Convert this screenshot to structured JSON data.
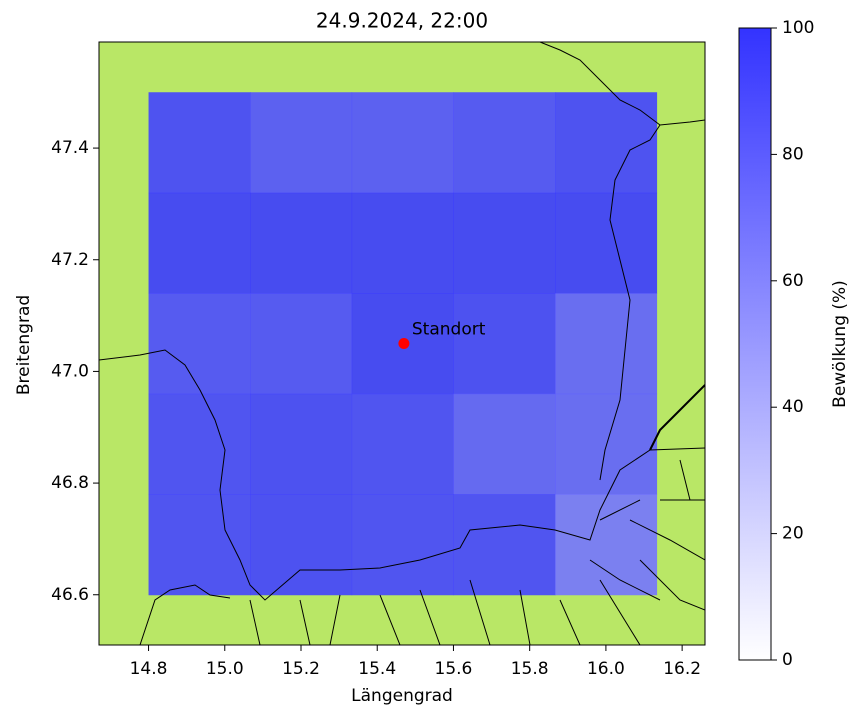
{
  "chart_data": {
    "type": "heatmap",
    "title": "24.9.2024, 22:00",
    "x_label": "Längengrad",
    "y_label": "Breitengrad",
    "x_edges": [
      14.8,
      15.067,
      15.333,
      15.6,
      15.867,
      16.133
    ],
    "y_edges": [
      47.5,
      47.32,
      47.14,
      46.96,
      46.78,
      46.6
    ],
    "values": [
      [
        92,
        85,
        85,
        88,
        92
      ],
      [
        96,
        96,
        96,
        96,
        96
      ],
      [
        88,
        88,
        96,
        93,
        78
      ],
      [
        91,
        93,
        91,
        80,
        78
      ],
      [
        91,
        93,
        91,
        91,
        68
      ]
    ],
    "xlim": [
      14.67,
      16.26
    ],
    "ylim": [
      46.51,
      47.59
    ],
    "xticks": [
      14.8,
      {
        "value": 15.0,
        "label": "15.0"
      },
      15.2,
      15.4,
      15.6,
      15.8,
      {
        "value": 16.0,
        "label": "16.0"
      },
      16.2
    ],
    "yticks": [
      46.6,
      46.8,
      {
        "value": 47.0,
        "label": "47.0"
      },
      47.2,
      47.4
    ],
    "colormap": [
      "#ffffff",
      "#3333ff"
    ],
    "background_color": "#b9e766",
    "colorbar": {
      "label": "Bewölkung (%)",
      "lim": [
        0,
        100
      ],
      "ticks": [
        0,
        20,
        40,
        60,
        80,
        100
      ]
    },
    "point": {
      "x": 15.47,
      "y": 47.05,
      "label": "Standort",
      "color": "#ff0000"
    }
  }
}
